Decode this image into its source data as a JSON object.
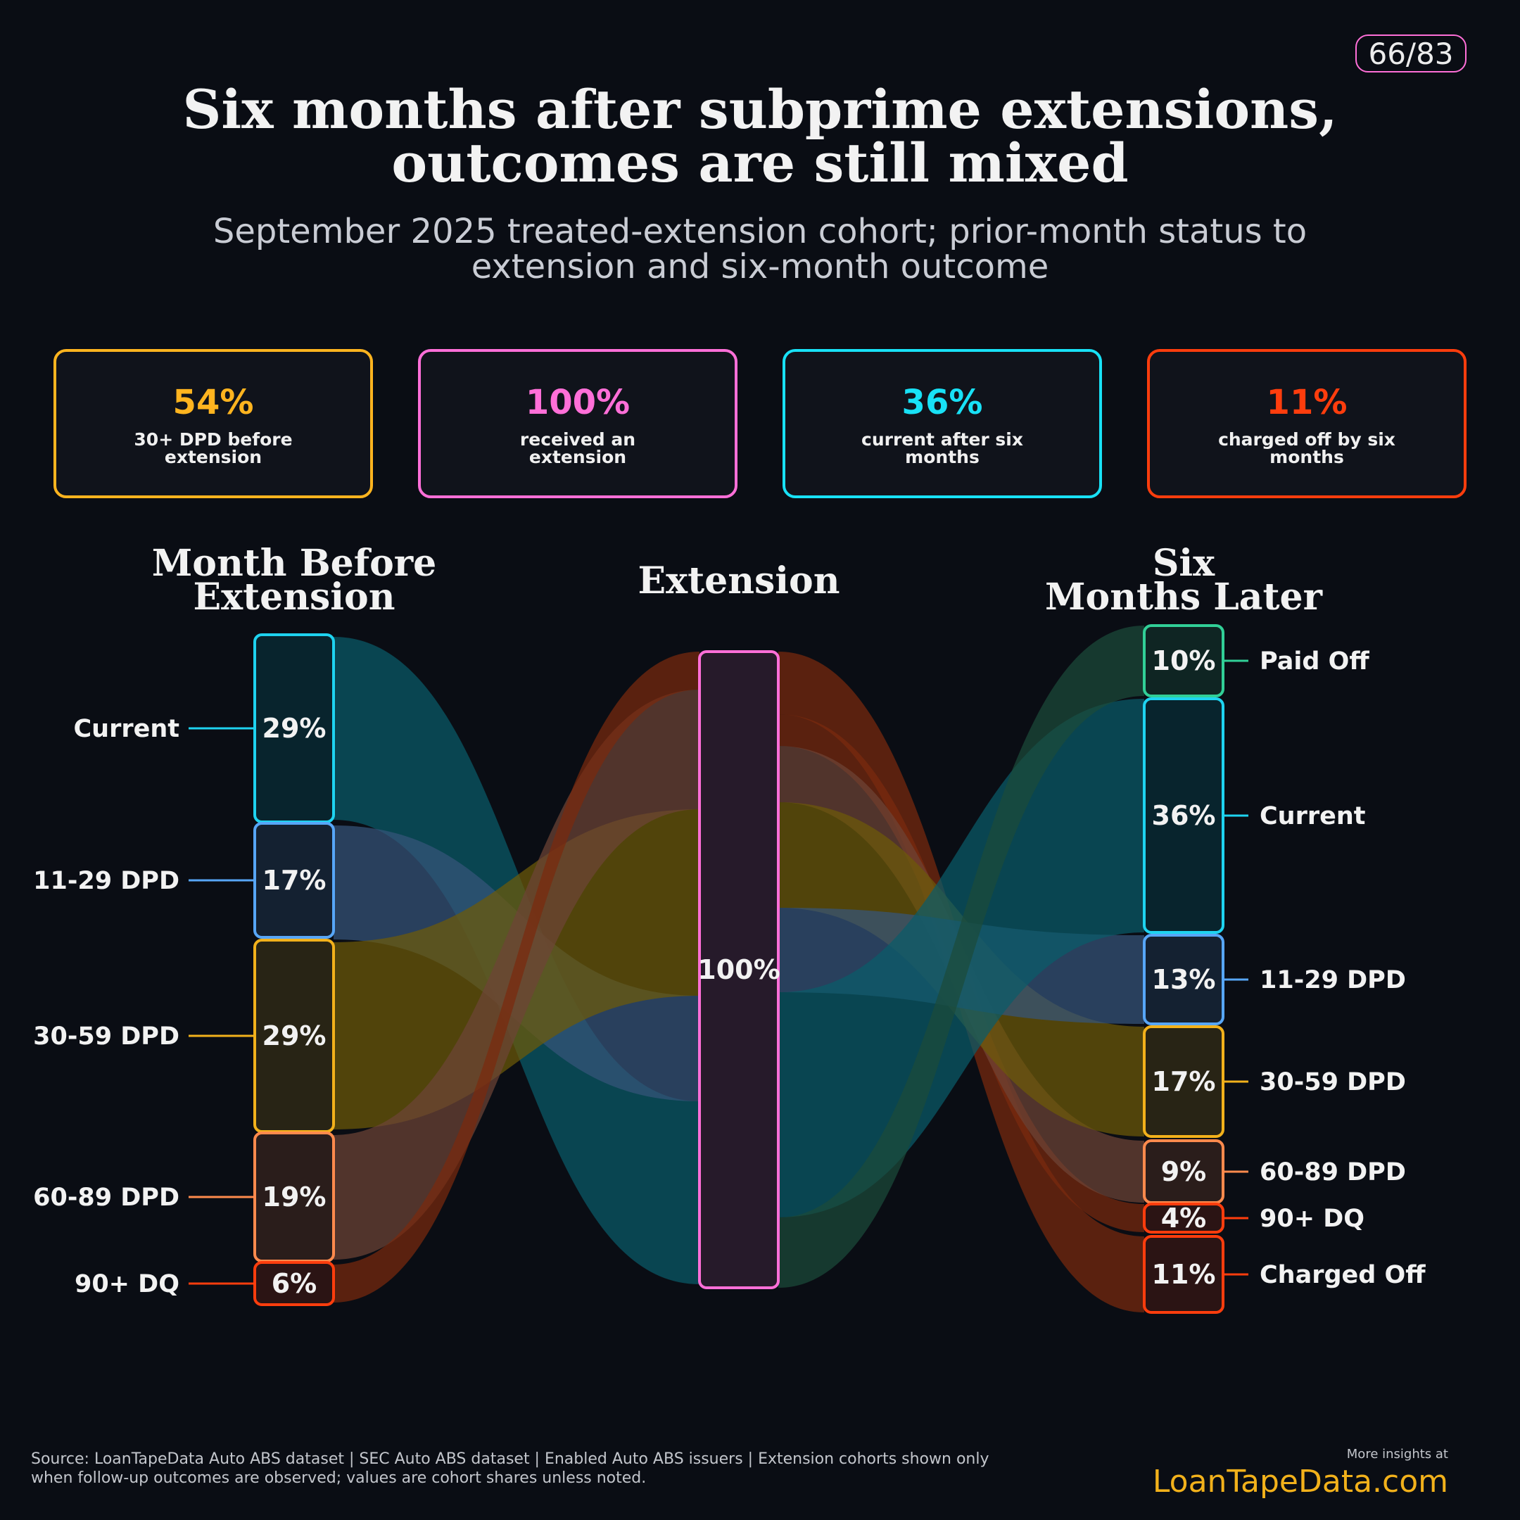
{
  "page_badge": "66/83",
  "title_lines": [
    "Six months after subprime extensions,",
    "outcomes are still mixed"
  ],
  "subtitle_lines": [
    "September 2025 treated-extension cohort; prior-month status to",
    "extension and six-month outcome"
  ],
  "kpis": [
    {
      "value": "54%",
      "label": "30+ DPD before extension",
      "color": "#ffb41f"
    },
    {
      "value": "100%",
      "label": "received an extension",
      "color": "#ff6fd8"
    },
    {
      "value": "36%",
      "label": "current after six months",
      "color": "#18e1f6"
    },
    {
      "value": "11%",
      "label": "charged off by six months",
      "color": "#ff3d0d"
    }
  ],
  "chart_data": {
    "type": "sankey",
    "stages": [
      {
        "title_lines": [
          "Month Before",
          "Extension"
        ]
      },
      {
        "title_lines": [
          "Extension"
        ]
      },
      {
        "title_lines": [
          "Six",
          "Months Later"
        ]
      }
    ],
    "nodes": {
      "before": [
        {
          "label": "Current",
          "value": 29,
          "display": "29%",
          "color": "#1ed3f0",
          "fill": "#08242d"
        },
        {
          "label": "11-29 DPD",
          "value": 17,
          "display": "17%",
          "color": "#57a6f7",
          "fill": "#142131"
        },
        {
          "label": "30-59 DPD",
          "value": 29,
          "display": "29%",
          "color": "#f2b11b",
          "fill": "#282415"
        },
        {
          "label": "60-89 DPD",
          "value": 19,
          "display": "19%",
          "color": "#ff8a4d",
          "fill": "#2a1d1b"
        },
        {
          "label": "90+ DQ",
          "value": 6,
          "display": "6%",
          "color": "#ff3d0d",
          "fill": "#2b1414"
        }
      ],
      "extension": [
        {
          "label": "",
          "value": 100,
          "display": "100%",
          "color": "#ff6fd8",
          "fill": "#261a2a"
        }
      ],
      "after": [
        {
          "label": "Paid Off",
          "value": 10,
          "display": "10%",
          "color": "#31cf97",
          "fill": "#0f2523"
        },
        {
          "label": "Current",
          "value": 36,
          "display": "36%",
          "color": "#1ed3f0",
          "fill": "#08242d"
        },
        {
          "label": "11-29 DPD",
          "value": 13,
          "display": "13%",
          "color": "#57a6f7",
          "fill": "#142131"
        },
        {
          "label": "30-59 DPD",
          "value": 17,
          "display": "17%",
          "color": "#f2b11b",
          "fill": "#282415"
        },
        {
          "label": "60-89 DPD",
          "value": 9,
          "display": "9%",
          "color": "#ff8a4d",
          "fill": "#2a1d1b"
        },
        {
          "label": "90+ DQ",
          "value": 4,
          "display": "4%",
          "color": "#ff3d0d",
          "fill": "#2b1414"
        },
        {
          "label": "Charged Off",
          "value": 11,
          "display": "11%",
          "color": "#ff3d0d",
          "fill": "#2b1414"
        }
      ]
    },
    "flow_colors": [
      "#0a5b6a",
      "#36547a",
      "#6e5a08",
      "#6e4436",
      "#7a2a0e",
      "#1c4b3a"
    ]
  },
  "footer": {
    "source_lines": [
      "Source: LoanTapeData Auto ABS dataset | SEC Auto ABS dataset | Enabled Auto ABS issuers | Extension cohorts shown only",
      "when follow-up outcomes are observed; values are cohort shares unless noted."
    ],
    "more_insights": "More insights at",
    "brand": "LoanTapeData.com",
    "brand_color": "#f2b11b"
  }
}
